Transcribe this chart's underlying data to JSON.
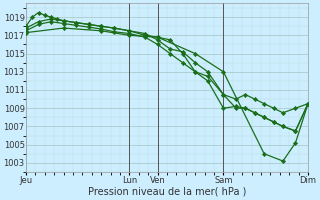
{
  "xlabel": "Pression niveau de la mer( hPa )",
  "bg_color": "#cceeff",
  "grid_major_color": "#aacccc",
  "grid_minor_color": "#bbdddd",
  "line_color": "#1a6e1a",
  "marker_color": "#1a6e1a",
  "ylim": [
    1002.0,
    1020.5
  ],
  "yticks": [
    1003,
    1005,
    1007,
    1009,
    1011,
    1013,
    1015,
    1017,
    1019
  ],
  "xtick_labels": [
    "Jeu",
    "Lun",
    "Ven",
    "Sam",
    "Dim"
  ],
  "xtick_positions": [
    0,
    33,
    42,
    63,
    90
  ],
  "xlim": [
    0,
    90
  ],
  "vline_positions": [
    33,
    42,
    63,
    90
  ],
  "vline_color": "#555555",
  "series1_x": [
    0,
    2,
    4,
    6,
    8,
    10,
    12,
    16,
    20,
    24,
    28,
    33,
    38,
    42,
    46,
    50,
    54,
    58,
    63,
    67,
    70,
    73,
    76,
    79,
    82,
    86,
    90
  ],
  "series1_y": [
    1018.0,
    1019.0,
    1019.5,
    1019.2,
    1019.0,
    1018.8,
    1018.6,
    1018.4,
    1018.2,
    1018.0,
    1017.8,
    1017.5,
    1017.0,
    1016.8,
    1016.5,
    1015.0,
    1013.0,
    1012.5,
    1010.5,
    1010.0,
    1010.5,
    1010.0,
    1009.5,
    1009.0,
    1008.5,
    1009.0,
    1009.5
  ],
  "series2_x": [
    0,
    4,
    8,
    12,
    16,
    20,
    24,
    28,
    33,
    38,
    42,
    46,
    50,
    54,
    58,
    63,
    67,
    70,
    73,
    76,
    79,
    82,
    86,
    90
  ],
  "series2_y": [
    1017.8,
    1018.5,
    1018.8,
    1018.6,
    1018.4,
    1018.2,
    1018.0,
    1017.8,
    1017.5,
    1017.2,
    1016.5,
    1015.5,
    1015.2,
    1014.0,
    1013.0,
    1010.5,
    1009.0,
    1009.0,
    1008.5,
    1008.0,
    1007.5,
    1007.0,
    1006.5,
    1009.5
  ],
  "series3_x": [
    0,
    4,
    8,
    12,
    16,
    20,
    24,
    28,
    33,
    38,
    42,
    46,
    50,
    54,
    58,
    63,
    67,
    70,
    73,
    76,
    79,
    82,
    86,
    90
  ],
  "series3_y": [
    1017.5,
    1018.2,
    1018.5,
    1018.3,
    1018.1,
    1017.9,
    1017.7,
    1017.4,
    1017.2,
    1016.8,
    1016.0,
    1015.0,
    1014.0,
    1013.0,
    1012.0,
    1009.0,
    1009.2,
    1009.0,
    1008.5,
    1008.0,
    1007.5,
    1007.0,
    1006.5,
    1009.5
  ],
  "series4_x": [
    0,
    12,
    24,
    33,
    42,
    54,
    63,
    76,
    82,
    86,
    90
  ],
  "series4_y": [
    1017.3,
    1017.8,
    1017.5,
    1017.0,
    1016.8,
    1015.0,
    1013.0,
    1004.0,
    1003.2,
    1005.2,
    1009.5
  ]
}
